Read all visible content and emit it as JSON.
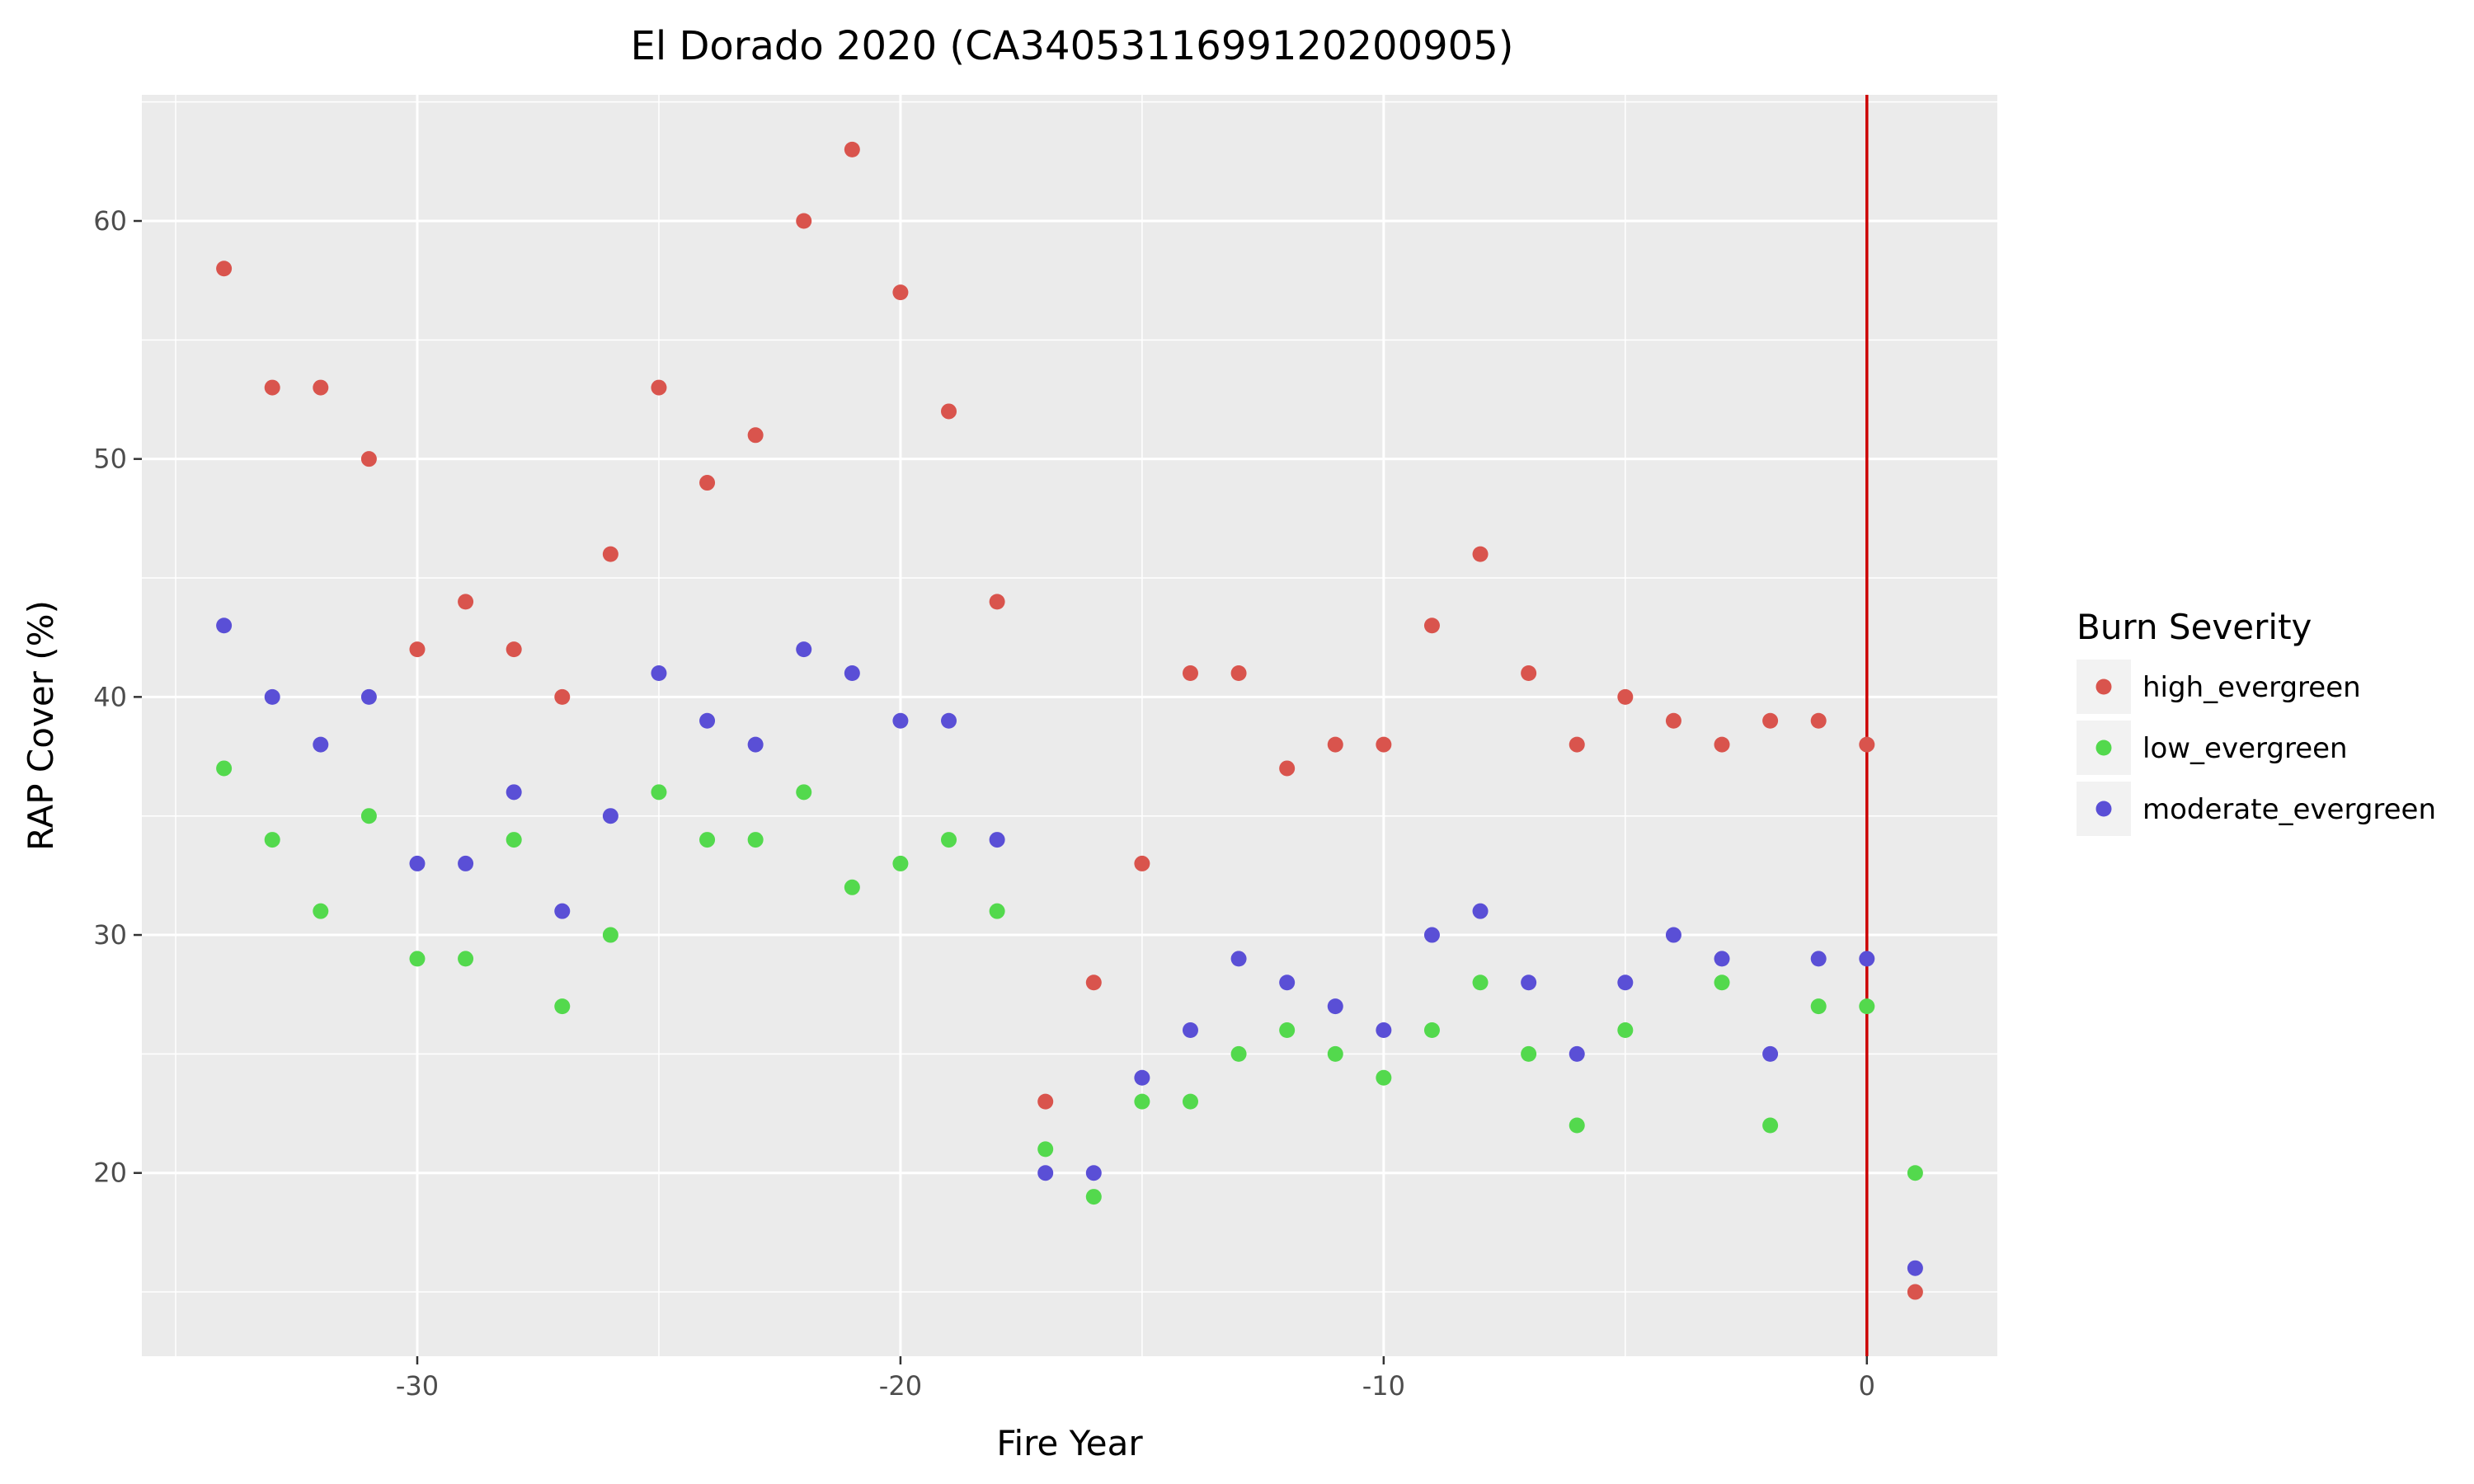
{
  "chart_data": {
    "type": "scatter",
    "title": "El Dorado 2020 (CA3405311699120200905)",
    "xlabel": "Fire Year",
    "ylabel": "RAP Cover (%)",
    "xlim": [
      -35.7,
      2.7
    ],
    "ylim": [
      12.3,
      65.3
    ],
    "x_ticks": [
      -30,
      -20,
      -10,
      0
    ],
    "y_ticks": [
      20,
      30,
      40,
      50,
      60
    ],
    "x_tick_labels": [
      "-30",
      "-20",
      "-10",
      "0"
    ],
    "y_tick_labels": [
      "20",
      "30",
      "40",
      "50",
      "60"
    ],
    "grid": true,
    "legend": {
      "title": "Burn Severity",
      "placement": "right"
    },
    "reference_line": {
      "x": 0,
      "color": "#cc0000"
    },
    "series": [
      {
        "name": "high_evergreen",
        "color": "#d9544d",
        "x": [
          -34,
          -33,
          -32,
          -31,
          -30,
          -29,
          -28,
          -27,
          -26,
          -25,
          -24,
          -23,
          -22,
          -21,
          -20,
          -19,
          -18,
          -17,
          -16,
          -15,
          -14,
          -13,
          -12,
          -11,
          -10,
          -9,
          -8,
          -7,
          -6,
          -5,
          -4,
          -3,
          -2,
          -1,
          0,
          1
        ],
        "y": [
          58,
          53,
          53,
          50,
          42,
          44,
          42,
          40,
          46,
          53,
          49,
          51,
          60,
          63,
          57,
          52,
          44,
          23,
          28,
          33,
          41,
          41,
          37,
          38,
          38,
          43,
          46,
          41,
          38,
          40,
          39,
          38,
          39,
          39,
          38,
          15
        ]
      },
      {
        "name": "low_evergreen",
        "color": "#53d94d",
        "x": [
          -34,
          -33,
          -32,
          -31,
          -30,
          -29,
          -28,
          -27,
          -26,
          -25,
          -24,
          -23,
          -22,
          -21,
          -20,
          -19,
          -18,
          -17,
          -16,
          -15,
          -14,
          -13,
          -12,
          -11,
          -10,
          -9,
          -8,
          -7,
          -6,
          -5,
          -3,
          -2,
          -1,
          0,
          1
        ],
        "y": [
          37,
          34,
          31,
          35,
          29,
          29,
          34,
          27,
          30,
          36,
          34,
          34,
          36,
          32,
          33,
          34,
          31,
          21,
          19,
          23,
          23,
          25,
          26,
          25,
          24,
          26,
          28,
          25,
          22,
          26,
          28,
          22,
          27,
          27,
          20
        ]
      },
      {
        "name": "moderate_evergreen",
        "color": "#5a4fd6",
        "x": [
          -34,
          -33,
          -32,
          -31,
          -30,
          -29,
          -28,
          -27,
          -26,
          -25,
          -24,
          -23,
          -22,
          -21,
          -20,
          -19,
          -18,
          -17,
          -16,
          -15,
          -14,
          -13,
          -12,
          -11,
          -10,
          -9,
          -8,
          -7,
          -6,
          -5,
          -4,
          -3,
          -2,
          -1,
          0,
          1
        ],
        "y": [
          43,
          40,
          38,
          40,
          33,
          33,
          36,
          31,
          35,
          41,
          39,
          38,
          42,
          41,
          39,
          39,
          34,
          20,
          20,
          24,
          26,
          29,
          28,
          27,
          26,
          30,
          31,
          28,
          25,
          28,
          30,
          29,
          25,
          29,
          29,
          16
        ]
      }
    ]
  }
}
